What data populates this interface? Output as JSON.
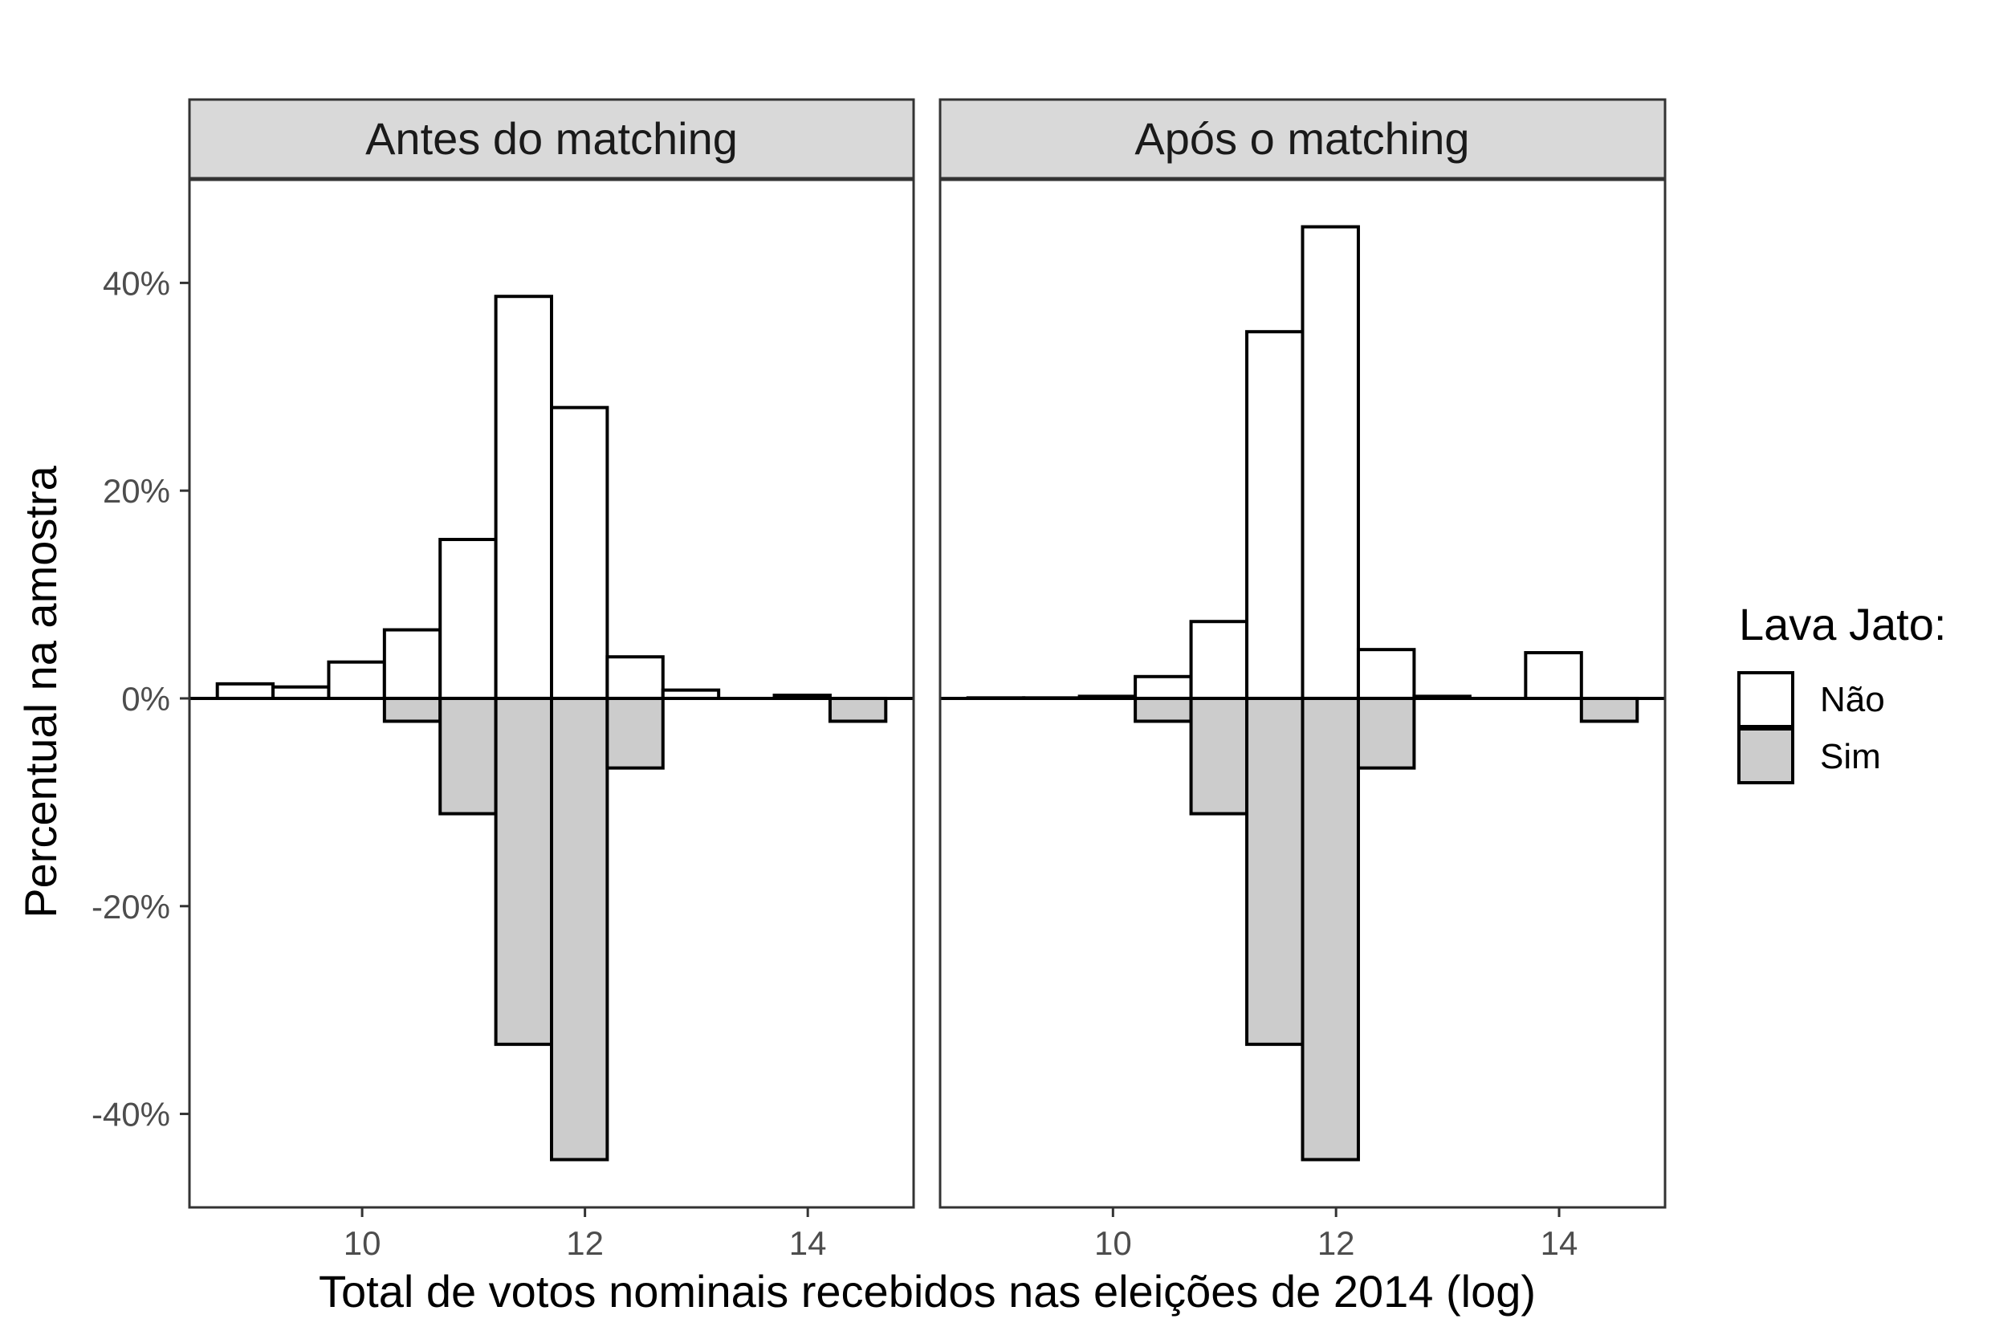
{
  "chart_data": {
    "type": "bar",
    "subtype": "mirrored histogram",
    "xlabel": "Total de votos nominais recebidos nas eleições de 2014 (log)",
    "ylabel": "Percentual na amostra",
    "xlim": [
      8.45,
      14.95
    ],
    "ylim": [
      -0.49,
      0.5
    ],
    "x_ticks": [
      10,
      12,
      14
    ],
    "x_tick_labels": [
      "10",
      "12",
      "14"
    ],
    "y_ticks": [
      -0.4,
      -0.2,
      0,
      0.2,
      0.4
    ],
    "y_tick_labels": [
      "-40%",
      "-20%",
      "0%",
      "20%",
      "40%"
    ],
    "grid": false,
    "bin_width": 0.5,
    "legend": {
      "title": "Lava Jato:",
      "placement": "right",
      "entries": [
        {
          "label": "Não",
          "color": "#ffffff"
        },
        {
          "label": "Sim",
          "color": "#cccccc"
        }
      ]
    },
    "bar_outline_color": "#000000",
    "panels": [
      {
        "title": "Antes do matching",
        "bins": [
          {
            "x": 8.95,
            "nao": 0.014,
            "sim": 0
          },
          {
            "x": 9.45,
            "nao": 0.011,
            "sim": 0
          },
          {
            "x": 9.95,
            "nao": 0.035,
            "sim": 0
          },
          {
            "x": 10.45,
            "nao": 0.066,
            "sim": -0.022
          },
          {
            "x": 10.95,
            "nao": 0.153,
            "sim": -0.111
          },
          {
            "x": 11.45,
            "nao": 0.387,
            "sim": -0.333
          },
          {
            "x": 11.95,
            "nao": 0.28,
            "sim": -0.444
          },
          {
            "x": 12.45,
            "nao": 0.04,
            "sim": -0.067
          },
          {
            "x": 12.95,
            "nao": 0.008,
            "sim": 0
          },
          {
            "x": 13.45,
            "nao": 0,
            "sim": 0
          },
          {
            "x": 13.95,
            "nao": 0.003,
            "sim": 0
          },
          {
            "x": 14.45,
            "nao": 0,
            "sim": -0.022
          }
        ]
      },
      {
        "title": "Após o matching",
        "bins": [
          {
            "x": 8.95,
            "nao": 0.0005,
            "sim": 0
          },
          {
            "x": 9.45,
            "nao": 0.0005,
            "sim": 0
          },
          {
            "x": 9.95,
            "nao": 0.002,
            "sim": 0
          },
          {
            "x": 10.45,
            "nao": 0.021,
            "sim": -0.022
          },
          {
            "x": 10.95,
            "nao": 0.074,
            "sim": -0.111
          },
          {
            "x": 11.45,
            "nao": 0.353,
            "sim": -0.333
          },
          {
            "x": 11.95,
            "nao": 0.454,
            "sim": -0.444
          },
          {
            "x": 12.45,
            "nao": 0.047,
            "sim": -0.067
          },
          {
            "x": 12.95,
            "nao": 0.002,
            "sim": 0
          },
          {
            "x": 13.45,
            "nao": 0,
            "sim": 0
          },
          {
            "x": 13.95,
            "nao": 0.044,
            "sim": 0
          },
          {
            "x": 14.45,
            "nao": 0,
            "sim": -0.022
          }
        ]
      }
    ]
  }
}
